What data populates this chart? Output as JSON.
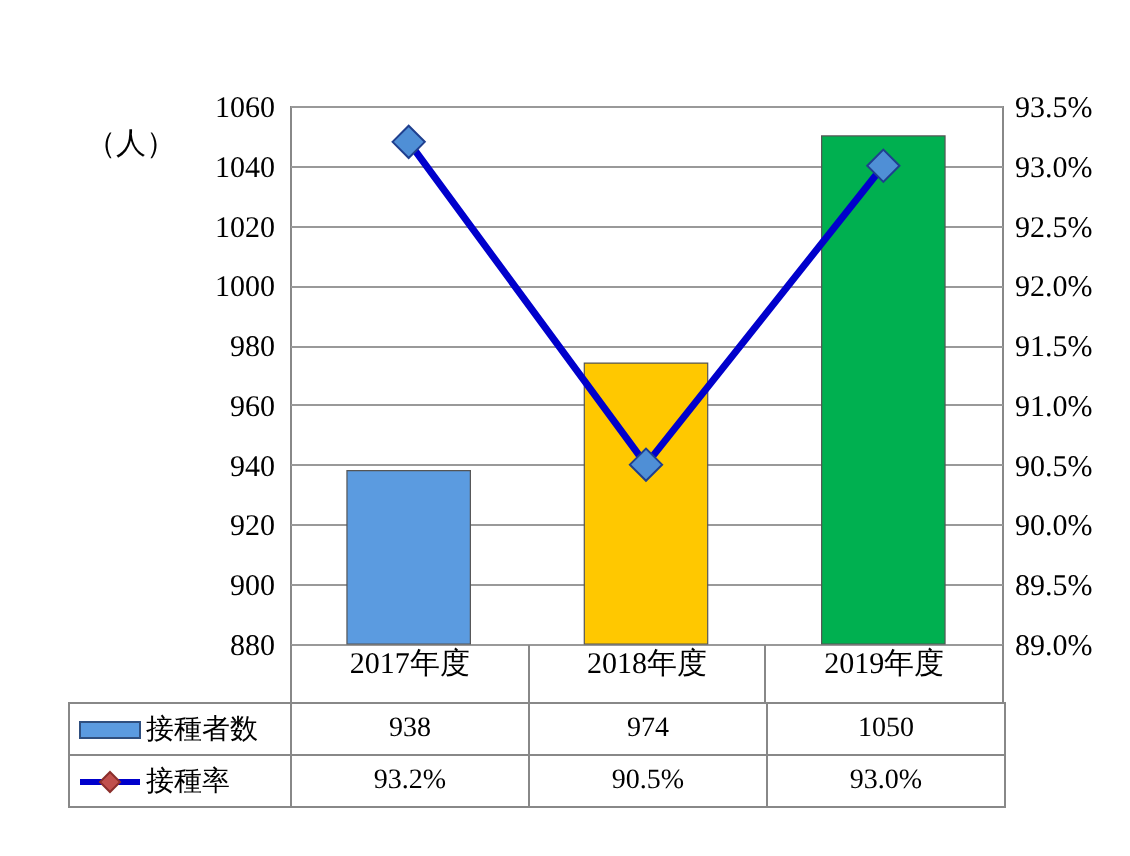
{
  "chart_data": {
    "type": "bar",
    "ylabel": "（人）",
    "categories": [
      "2017年度",
      "2018年度",
      "2019年度"
    ],
    "series": [
      {
        "name": "接種者数",
        "color": "#5b9be0",
        "colors": [
          "#5b9be0",
          "#ffc800",
          "#00b050"
        ],
        "values": [
          938,
          974,
          1050
        ],
        "value_labels": [
          "938",
          "974",
          "1050"
        ]
      },
      {
        "name": "接種率",
        "type": "line",
        "axis": "y2",
        "color": "#0000cc",
        "values": [
          93.2,
          90.5,
          93.0
        ],
        "value_labels": [
          "93.2%",
          "90.5%",
          "93.0%"
        ]
      }
    ],
    "ylim": [
      880,
      1060
    ],
    "yticks": [
      880,
      900,
      920,
      940,
      960,
      980,
      1000,
      1020,
      1040,
      1060
    ],
    "y2lim": [
      89.0,
      93.5
    ],
    "y2ticks": [
      {
        "value": 89.0,
        "label": "89.0%"
      },
      {
        "value": 89.5,
        "label": "89.5%"
      },
      {
        "value": 90.0,
        "label": "90.0%"
      },
      {
        "value": 90.5,
        "label": "90.5%"
      },
      {
        "value": 91.0,
        "label": "91.0%"
      },
      {
        "value": 91.5,
        "label": "91.5%"
      },
      {
        "value": 92.0,
        "label": "92.0%"
      },
      {
        "value": 92.5,
        "label": "92.5%"
      },
      {
        "value": 93.0,
        "label": "93.0%"
      },
      {
        "value": 93.5,
        "label": "93.5%"
      }
    ],
    "grid": "y",
    "legend": "bottom",
    "marker": "diamond"
  }
}
